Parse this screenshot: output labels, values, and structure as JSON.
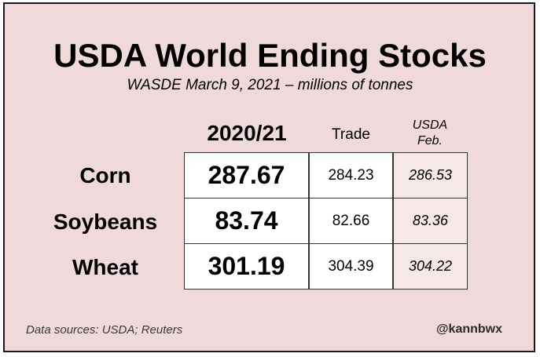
{
  "chart_data": {
    "type": "table",
    "title": "USDA World Ending Stocks",
    "subtitle": "WASDE March 9, 2021 – millions of tonnes",
    "columns": {
      "main": "2020/21",
      "trade": "Trade",
      "usda_line1": "USDA",
      "usda_line2": "Feb."
    },
    "rows": [
      {
        "label": "Corn",
        "main": "287.67",
        "trade": "284.23",
        "usda": "286.53"
      },
      {
        "label": "Soybeans",
        "main": "83.74",
        "trade": "82.66",
        "usda": "83.36"
      },
      {
        "label": "Wheat",
        "main": "301.19",
        "trade": "304.39",
        "usda": "304.22"
      }
    ],
    "colors": {
      "background": "#efd9da",
      "usda_column": "#f7e8e8"
    }
  },
  "footer": {
    "source": "Data sources: USDA; Reuters",
    "handle": "@kannbwx"
  }
}
